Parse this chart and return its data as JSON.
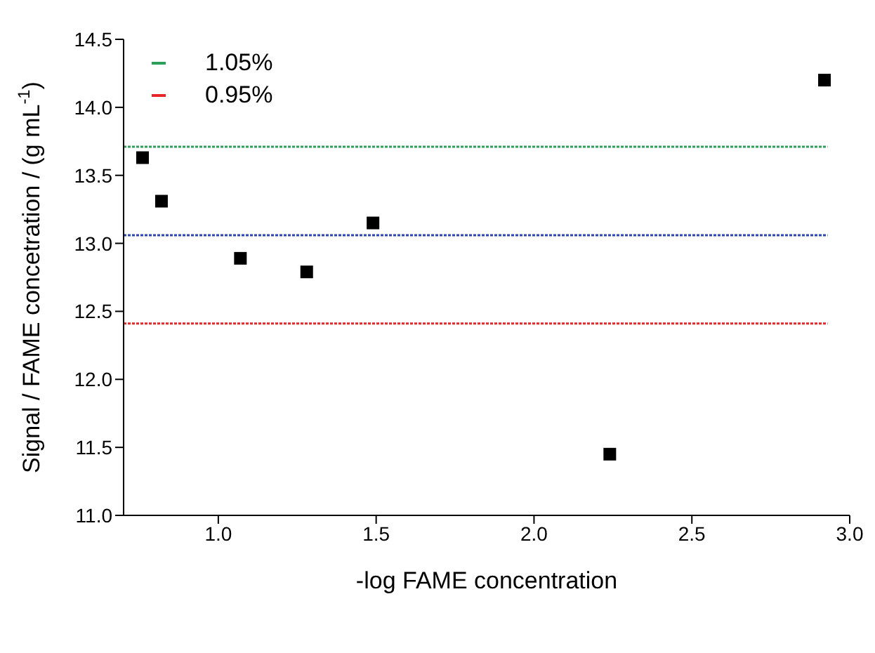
{
  "chart_data": {
    "type": "scatter",
    "xlabel": "-log FAME concentration",
    "ylabel": "Signal / FAME concetration / (g mL$^{-1}$)",
    "xlim": [
      0.7,
      3.0
    ],
    "xticks": [
      {
        "value": 1,
        "label": "1.0"
      },
      1.5,
      {
        "value": 2,
        "label": "2.0"
      },
      2.5,
      {
        "value": 3,
        "label": "3.0"
      }
    ],
    "ylim": [
      11.0,
      14.5
    ],
    "yticks": [
      {
        "value": 11,
        "label": "11.0"
      },
      11.5,
      {
        "value": 12,
        "label": "12.0"
      },
      12.5,
      {
        "value": 13,
        "label": "13.0"
      },
      13.5,
      {
        "value": 14,
        "label": "14.0"
      },
      14.5
    ],
    "grid": false,
    "legend": "top left",
    "series": [
      {
        "color": "#000000",
        "marker": "square",
        "x": [
          0.76,
          0.82,
          1.07,
          1.28,
          1.49,
          2.24,
          2.92
        ],
        "values": [
          13.63,
          13.31,
          12.89,
          12.79,
          13.15,
          11.45,
          14.2
        ]
      },
      {
        "type": "line",
        "name": "1.05%",
        "color": "#2ca05a",
        "line_style": "dotted",
        "x": [
          0.7,
          2.93
        ],
        "values": [
          13.71,
          13.71
        ]
      },
      {
        "type": "line",
        "color": "#2a45b0",
        "line_style": "dotted",
        "x": [
          0.7,
          2.93
        ],
        "values": [
          13.06,
          13.06
        ]
      },
      {
        "type": "line",
        "name": "0.95%",
        "color": "#e8262a",
        "line_style": "dotted",
        "x": [
          0.7,
          2.93
        ],
        "values": [
          12.41,
          12.41
        ]
      }
    ]
  }
}
